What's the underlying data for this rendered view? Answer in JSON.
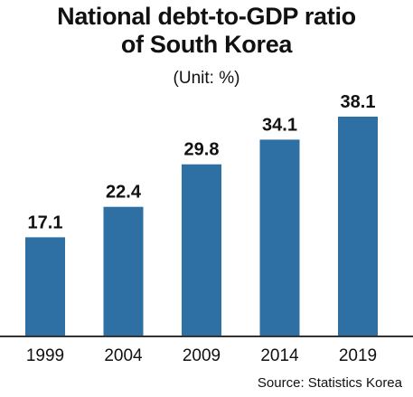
{
  "title_lines": [
    "National debt-to-GDP ratio",
    "of South Korea"
  ],
  "unit_label": "(Unit: %)",
  "source": "Source: Statistics Korea",
  "colors": {
    "bar": "#2e6fa4",
    "baseline": "#333333",
    "text": "#111111"
  },
  "chart_data": {
    "type": "bar",
    "title": "National debt-to-GDP ratio of South Korea",
    "unit": "(Unit: %)",
    "categories": [
      "1999",
      "2004",
      "2009",
      "2014",
      "2019"
    ],
    "values": [
      17.1,
      22.4,
      29.8,
      34.1,
      38.1
    ],
    "data_labels": [
      "17.1",
      "22.4",
      "29.8",
      "34.1",
      "38.1"
    ],
    "xlabel": "",
    "ylabel": "",
    "ylim": [
      0,
      38.1
    ],
    "grid": false,
    "legend": "none"
  }
}
